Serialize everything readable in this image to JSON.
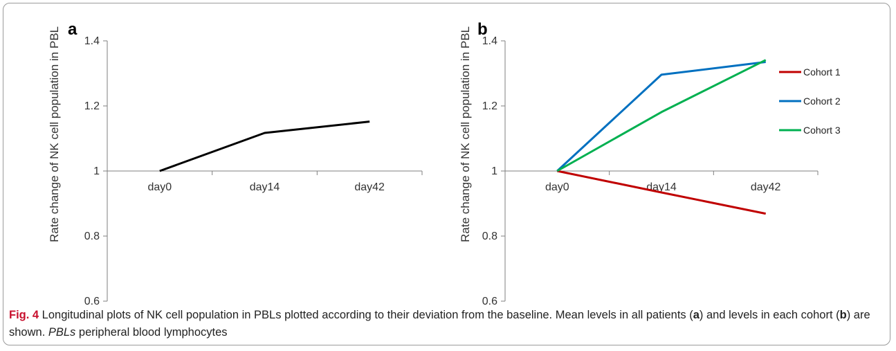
{
  "chart_data": [
    {
      "panel": "a",
      "type": "line",
      "categories": [
        "day0",
        "day14",
        "day42"
      ],
      "ylabel": "Rate change of  NK cell population in PBL",
      "ylim": [
        0.6,
        1.4
      ],
      "yticks": [
        "0.6",
        "0.8",
        "1",
        "1.2",
        "1.4"
      ],
      "series": [
        {
          "values": [
            1.0,
            1.117,
            1.152
          ],
          "color": "#000000"
        }
      ]
    },
    {
      "panel": "b",
      "type": "line",
      "categories": [
        "day0",
        "day14",
        "day42"
      ],
      "ylabel": "Rate change of  NK cell population in PBL",
      "ylim": [
        0.6,
        1.4
      ],
      "yticks": [
        "0.6",
        "0.8",
        "1",
        "1.2",
        "1.4"
      ],
      "legend": "right",
      "series": [
        {
          "name": "Cohort 1",
          "values": [
            1.0,
            0.934,
            0.869
          ],
          "color": "#c00000"
        },
        {
          "name": "Cohort 2",
          "values": [
            1.0,
            1.296,
            1.335
          ],
          "color": "#0070c0"
        },
        {
          "name": "Cohort 3",
          "values": [
            1.0,
            1.181,
            1.341
          ],
          "color": "#00b050"
        }
      ]
    }
  ],
  "caption": {
    "fig_label": "Fig. 4",
    "text1": "  Longitudinal plots of NK cell population in PBLs plotted according to their deviation from the baseline. Mean levels in all patients (",
    "a": "a",
    "text2": ") and levels in each cohort (",
    "b": "b",
    "text3": ") are shown. ",
    "abbr": "PBLs",
    "abbr_def": " peripheral blood lymphocytes"
  }
}
